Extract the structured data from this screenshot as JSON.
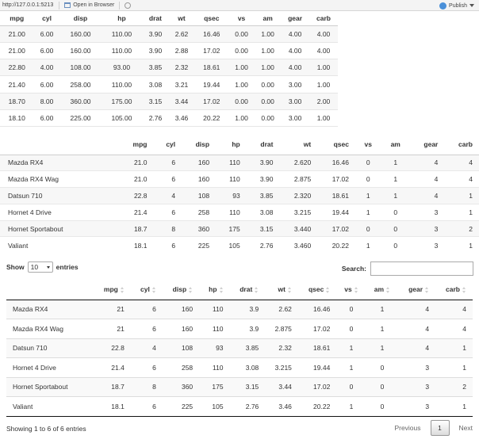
{
  "toolbar": {
    "url": "http://127.0.0.1:5213",
    "open_in_browser": "Open in Browser",
    "publish": "Publish",
    "icons": [
      "browser-window-icon",
      "refresh-icon",
      "publish-icon",
      "chevron-down-icon"
    ]
  },
  "table1": {
    "headers": [
      "mpg",
      "cyl",
      "disp",
      "hp",
      "drat",
      "wt",
      "qsec",
      "vs",
      "am",
      "gear",
      "carb"
    ],
    "rows": [
      [
        "21.00",
        "6.00",
        "160.00",
        "110.00",
        "3.90",
        "2.62",
        "16.46",
        "0.00",
        "1.00",
        "4.00",
        "4.00"
      ],
      [
        "21.00",
        "6.00",
        "160.00",
        "110.00",
        "3.90",
        "2.88",
        "17.02",
        "0.00",
        "1.00",
        "4.00",
        "4.00"
      ],
      [
        "22.80",
        "4.00",
        "108.00",
        "93.00",
        "3.85",
        "2.32",
        "18.61",
        "1.00",
        "1.00",
        "4.00",
        "1.00"
      ],
      [
        "21.40",
        "6.00",
        "258.00",
        "110.00",
        "3.08",
        "3.21",
        "19.44",
        "1.00",
        "0.00",
        "3.00",
        "1.00"
      ],
      [
        "18.70",
        "8.00",
        "360.00",
        "175.00",
        "3.15",
        "3.44",
        "17.02",
        "0.00",
        "0.00",
        "3.00",
        "2.00"
      ],
      [
        "18.10",
        "6.00",
        "225.00",
        "105.00",
        "2.76",
        "3.46",
        "20.22",
        "1.00",
        "0.00",
        "3.00",
        "1.00"
      ]
    ]
  },
  "table2": {
    "headers": [
      "",
      "mpg",
      "cyl",
      "disp",
      "hp",
      "drat",
      "wt",
      "qsec",
      "vs",
      "am",
      "gear",
      "carb"
    ],
    "rows": [
      [
        "Mazda RX4",
        "21.0",
        "6",
        "160",
        "110",
        "3.90",
        "2.620",
        "16.46",
        "0",
        "1",
        "4",
        "4"
      ],
      [
        "Mazda RX4 Wag",
        "21.0",
        "6",
        "160",
        "110",
        "3.90",
        "2.875",
        "17.02",
        "0",
        "1",
        "4",
        "4"
      ],
      [
        "Datsun 710",
        "22.8",
        "4",
        "108",
        "93",
        "3.85",
        "2.320",
        "18.61",
        "1",
        "1",
        "4",
        "1"
      ],
      [
        "Hornet 4 Drive",
        "21.4",
        "6",
        "258",
        "110",
        "3.08",
        "3.215",
        "19.44",
        "1",
        "0",
        "3",
        "1"
      ],
      [
        "Hornet Sportabout",
        "18.7",
        "8",
        "360",
        "175",
        "3.15",
        "3.440",
        "17.02",
        "0",
        "0",
        "3",
        "2"
      ],
      [
        "Valiant",
        "18.1",
        "6",
        "225",
        "105",
        "2.76",
        "3.460",
        "20.22",
        "1",
        "0",
        "3",
        "1"
      ]
    ]
  },
  "datatable": {
    "length_prefix": "Show",
    "length_value": "10",
    "length_suffix": "entries",
    "search_label": "Search:",
    "search_value": "",
    "headers": [
      "",
      "mpg",
      "cyl",
      "disp",
      "hp",
      "drat",
      "wt",
      "qsec",
      "vs",
      "am",
      "gear",
      "carb"
    ],
    "rows": [
      [
        "Mazda RX4",
        "21",
        "6",
        "160",
        "110",
        "3.9",
        "2.62",
        "16.46",
        "0",
        "1",
        "4",
        "4"
      ],
      [
        "Mazda RX4 Wag",
        "21",
        "6",
        "160",
        "110",
        "3.9",
        "2.875",
        "17.02",
        "0",
        "1",
        "4",
        "4"
      ],
      [
        "Datsun 710",
        "22.8",
        "4",
        "108",
        "93",
        "3.85",
        "2.32",
        "18.61",
        "1",
        "1",
        "4",
        "1"
      ],
      [
        "Hornet 4 Drive",
        "21.4",
        "6",
        "258",
        "110",
        "3.08",
        "3.215",
        "19.44",
        "1",
        "0",
        "3",
        "1"
      ],
      [
        "Hornet Sportabout",
        "18.7",
        "8",
        "360",
        "175",
        "3.15",
        "3.44",
        "17.02",
        "0",
        "0",
        "3",
        "2"
      ],
      [
        "Valiant",
        "18.1",
        "6",
        "225",
        "105",
        "2.76",
        "3.46",
        "20.22",
        "1",
        "0",
        "3",
        "1"
      ]
    ],
    "info": "Showing 1 to 6 of 6 entries",
    "previous": "Previous",
    "current_page": "1",
    "next": "Next"
  }
}
